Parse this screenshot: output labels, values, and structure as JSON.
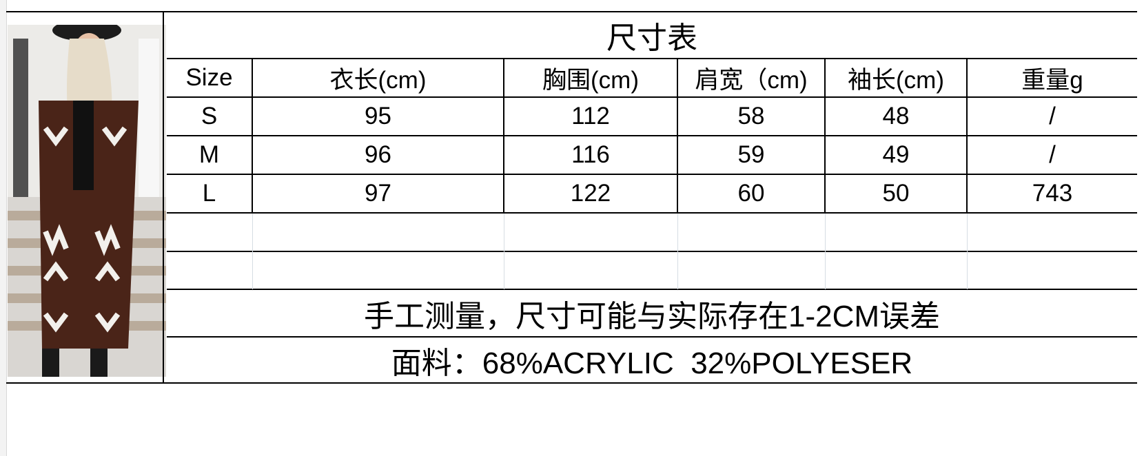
{
  "title": "尺寸表",
  "headers": [
    "Size",
    "衣长(cm)",
    "胸围(cm)",
    "肩宽（cm)",
    "袖长(cm)",
    "重量g"
  ],
  "rows": [
    [
      "S",
      "95",
      "112",
      "58",
      "48",
      "/"
    ],
    [
      "M",
      "96",
      "116",
      "59",
      "49",
      "/"
    ],
    [
      "L",
      "97",
      "122",
      "60",
      "50",
      "743"
    ]
  ],
  "note": "手工测量，尺寸可能与实际存在1-2CM误差",
  "fabric": "面料：68%ACRYLIC  32%POLYESER",
  "photo": {
    "subject": "product-photo-cardigan",
    "colors": {
      "cardigan": "#4a2418",
      "pattern": "#f2f0ec"
    }
  }
}
